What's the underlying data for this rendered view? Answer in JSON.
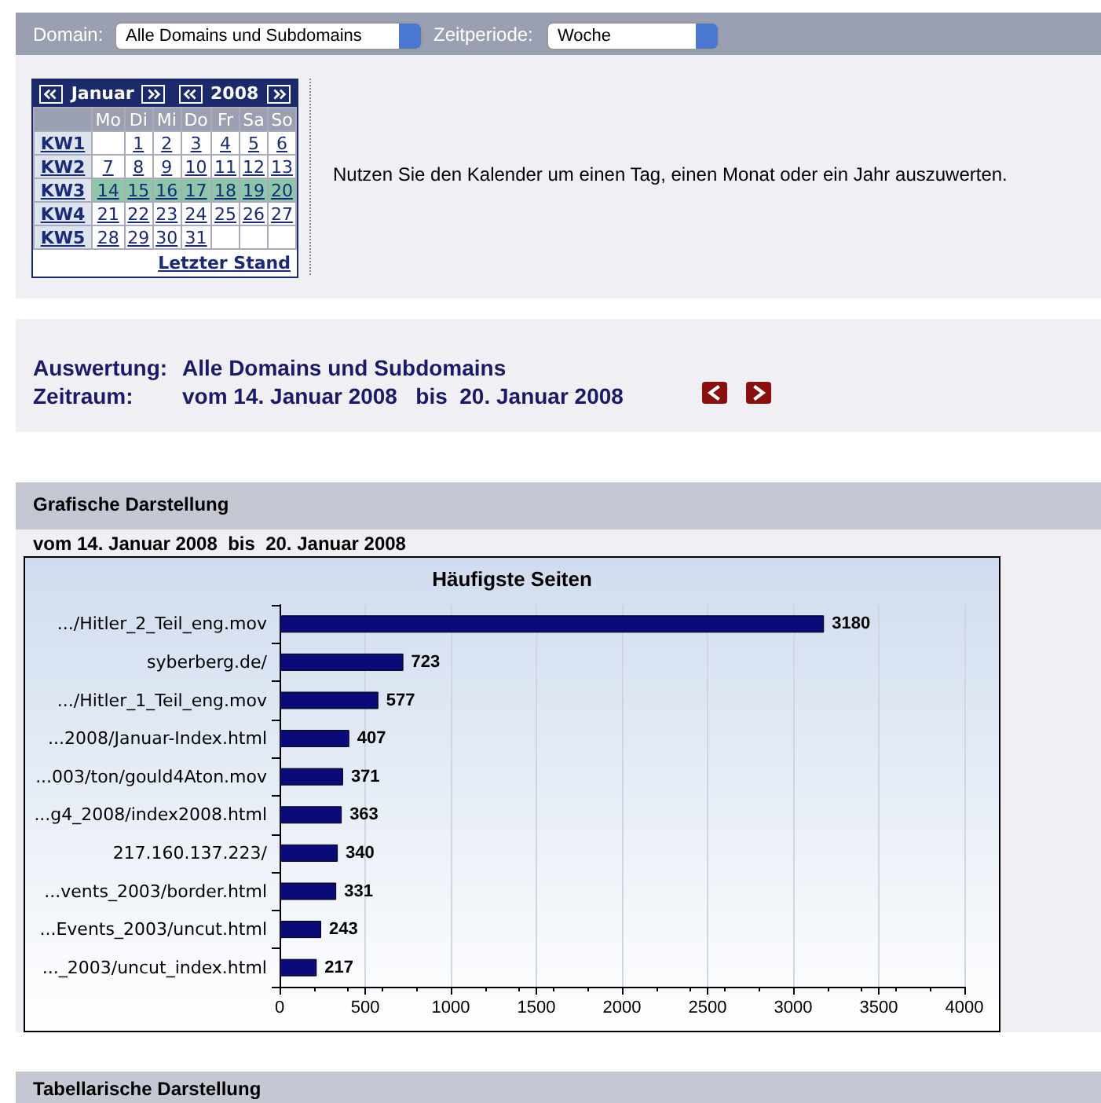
{
  "chart_data": {
    "type": "bar",
    "orientation": "horizontal",
    "title": "Häufigste Seiten",
    "categories": [
      ".../Hitler_2_Teil_eng.mov",
      "syberberg.de/",
      ".../Hitler_1_Teil_eng.mov",
      "...2008/Januar-Index.html",
      "...003/ton/gould4Aton.mov",
      "...g4_2008/index2008.html",
      "217.160.137.223/",
      "...vents_2003/border.html",
      "...Events_2003/uncut.html",
      "..._2003/uncut_index.html"
    ],
    "values": [
      3180,
      723,
      577,
      407,
      371,
      363,
      340,
      331,
      243,
      217
    ],
    "color": "#0a0a78",
    "data_labels": true,
    "grid": "x",
    "xlim": [
      0,
      4000
    ],
    "xticks": [
      0,
      500,
      1000,
      1500,
      2000,
      2500,
      3000,
      3500,
      4000
    ],
    "annotations": [
      "Domain:",
      "Alle Domains und Subdomains",
      "Zeitperiode:",
      "Woche",
      "Januar",
      "2008",
      "Mo Di Mi Do Fr Sa So",
      "KW1",
      "1 2 3 4 5 6",
      "KW2",
      "7 8 9 10 11 12 13",
      "KW3",
      "14 15 16 17 18 19 20",
      "KW4",
      "21 22 23 24 25 26 27",
      "KW5",
      "28 29 30 31",
      "Letzter Stand",
      "Nutzen Sie den Kalender um einen Tag, einen Monat oder ein Jahr auszuwerten.",
      "Auswertung:",
      "Alle Domains und Subdomains",
      "Zeitraum:",
      "vom 14. Januar 2008   bis  20. Januar 2008",
      "Grafische Darstellung",
      "vom 14. Januar 2008  bis  20. Januar 2008",
      "Tabellarische Darstellung"
    ]
  }
}
